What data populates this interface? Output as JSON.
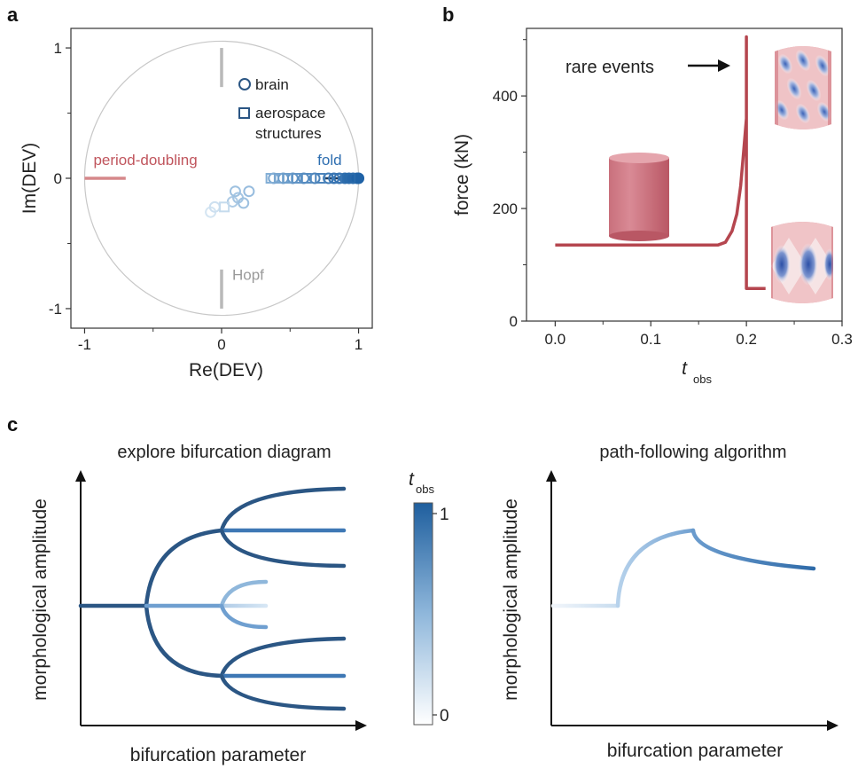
{
  "panels": {
    "a": "a",
    "b": "b",
    "c": "c"
  },
  "colors": {
    "red": "#b5464f",
    "red_light": "#d88a8a",
    "gray": "#b9b9b9",
    "blue_dark": "#2b5684",
    "blue_mid": "#3e78b5",
    "blue_light": "#8fb7db",
    "blue_pale": "#cfe2f2",
    "fold_blue": "#2e6eb0"
  },
  "chart_data": [
    {
      "id": "a",
      "type": "scatter",
      "xlabel": "Re(DEV)",
      "ylabel": "Im(DEV)",
      "xlim": [
        -1.1,
        1.1
      ],
      "ylim": [
        -1.15,
        1.15
      ],
      "xticks": [
        -1,
        0,
        1
      ],
      "yticks": [
        -1,
        0,
        1
      ],
      "xtick_labels": [
        "-1",
        "0",
        "1"
      ],
      "ytick_labels": [
        "-1",
        "0",
        "1"
      ],
      "unit_circle": true,
      "annotations": {
        "period_doubling": "period-doubling",
        "fold": "fold",
        "hopf": "Hopf"
      },
      "legend": [
        {
          "marker": "circle",
          "label": "brain"
        },
        {
          "marker": "square",
          "label": "aerospace\nstructures"
        }
      ],
      "legend_label_1": "brain",
      "legend_label_2a": "aerospace",
      "legend_label_2b": "structures",
      "region_segments": [
        {
          "name": "period-doubling",
          "x": [
            -1.0,
            -0.7
          ],
          "y": [
            0,
            0
          ]
        },
        {
          "name": "hopf-upper",
          "x": [
            0,
            0
          ],
          "y": [
            0.7,
            1.0
          ]
        },
        {
          "name": "hopf-lower",
          "x": [
            0,
            0
          ],
          "y": [
            -1.0,
            -0.7
          ]
        },
        {
          "name": "fold",
          "x": [
            0.75,
            1.0
          ],
          "y": [
            0,
            0
          ]
        }
      ],
      "series": [
        {
          "name": "brain",
          "points": [
            {
              "x": -0.08,
              "y": -0.26,
              "t": 0.05
            },
            {
              "x": -0.05,
              "y": -0.22,
              "t": 0.1
            },
            {
              "x": 0.08,
              "y": -0.18,
              "t": 0.3
            },
            {
              "x": 0.12,
              "y": -0.15,
              "t": 0.35
            },
            {
              "x": 0.16,
              "y": -0.19,
              "t": 0.4
            },
            {
              "x": 0.1,
              "y": -0.1,
              "t": 0.4
            },
            {
              "x": 0.2,
              "y": -0.1,
              "t": 0.45
            },
            {
              "x": 0.38,
              "y": 0.0,
              "t": 0.6
            },
            {
              "x": 0.45,
              "y": 0.0,
              "t": 0.65
            },
            {
              "x": 0.52,
              "y": 0.0,
              "t": 0.7
            },
            {
              "x": 0.6,
              "y": 0.0,
              "t": 0.75
            },
            {
              "x": 0.68,
              "y": 0.0,
              "t": 0.8
            },
            {
              "x": 0.78,
              "y": 0.0,
              "t": 0.85
            },
            {
              "x": 0.82,
              "y": 0.0,
              "t": 0.88
            },
            {
              "x": 0.86,
              "y": 0.0,
              "t": 0.9
            },
            {
              "x": 0.9,
              "y": 0.0,
              "t": 0.93
            },
            {
              "x": 0.93,
              "y": 0.0,
              "t": 0.95
            },
            {
              "x": 0.96,
              "y": 0.0,
              "t": 0.97
            },
            {
              "x": 0.99,
              "y": 0.0,
              "t": 1.0
            },
            {
              "x": 1.0,
              "y": 0.0,
              "t": 1.0
            }
          ]
        },
        {
          "name": "aerospace structures",
          "points": [
            {
              "x": 0.02,
              "y": -0.22,
              "t": 0.15
            },
            {
              "x": 0.36,
              "y": 0.0,
              "t": 0.55
            },
            {
              "x": 0.42,
              "y": 0.0,
              "t": 0.6
            },
            {
              "x": 0.48,
              "y": 0.0,
              "t": 0.65
            },
            {
              "x": 0.55,
              "y": 0.0,
              "t": 0.7
            },
            {
              "x": 0.62,
              "y": 0.0,
              "t": 0.75
            },
            {
              "x": 0.72,
              "y": 0.0,
              "t": 0.8
            },
            {
              "x": 0.84,
              "y": 0.0,
              "t": 0.88
            },
            {
              "x": 0.94,
              "y": 0.0,
              "t": 0.95
            }
          ]
        }
      ]
    },
    {
      "id": "b",
      "type": "line",
      "xlabel": "t",
      "xlabel_sub": "obs",
      "ylabel": "force (kN)",
      "xlim": [
        -0.03,
        0.3
      ],
      "ylim": [
        0,
        520
      ],
      "xticks": [
        0.0,
        0.1,
        0.2,
        0.3
      ],
      "yticks": [
        0,
        200,
        400
      ],
      "xtick_labels": [
        "0.0",
        "0.1",
        "0.2",
        "0.3"
      ],
      "ytick_labels": [
        "0",
        "200",
        "400"
      ],
      "annotation": "rare events",
      "series": [
        {
          "points": [
            {
              "x": 0.0,
              "y": 135
            },
            {
              "x": 0.17,
              "y": 135
            },
            {
              "x": 0.178,
              "y": 140
            },
            {
              "x": 0.185,
              "y": 160
            },
            {
              "x": 0.19,
              "y": 190
            },
            {
              "x": 0.194,
              "y": 240
            },
            {
              "x": 0.197,
              "y": 300
            },
            {
              "x": 0.2,
              "y": 360
            },
            {
              "x": 0.2,
              "y": 505
            },
            {
              "x": 0.2,
              "y": 58
            },
            {
              "x": 0.22,
              "y": 58
            }
          ]
        }
      ]
    }
  ],
  "panel_c": {
    "left_title": "explore bifurcation diagram",
    "right_title": "path-following algorithm",
    "ylabel": "morphological amplitude",
    "xlabel": "bifurcation parameter",
    "colorbar_label": "t",
    "colorbar_label_sub": "obs",
    "colorbar_max": "1",
    "colorbar_min": "0"
  }
}
